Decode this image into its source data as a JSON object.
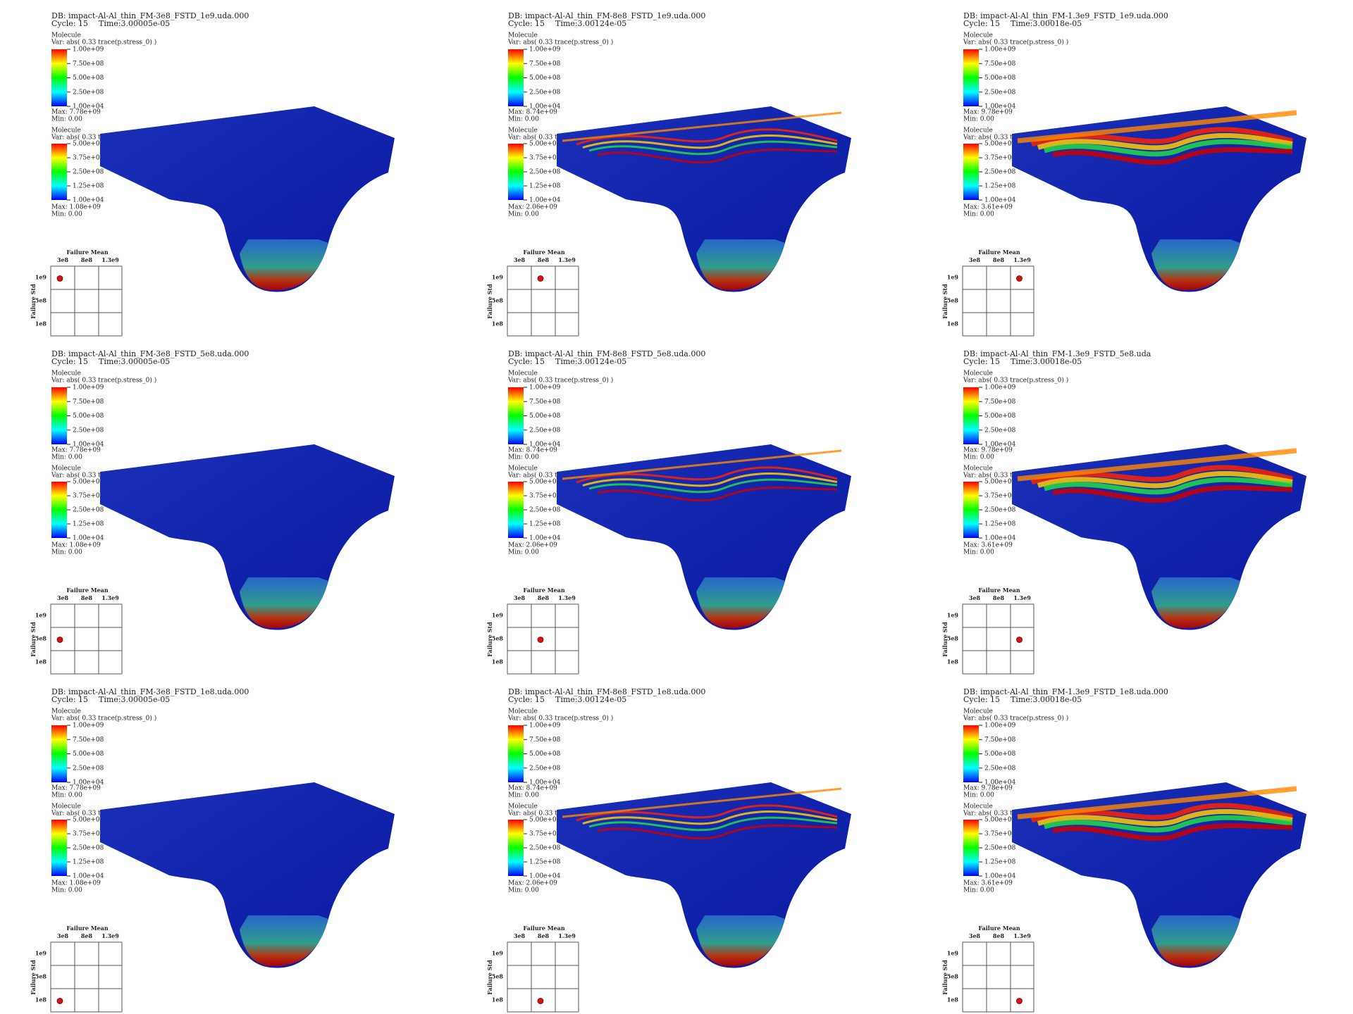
{
  "legend_top": {
    "title": "Molecule",
    "var": "Var: abs( 0.33 trace(p.stress_0) )",
    "ticks": [
      "1.00e+09",
      "7.50e+08",
      "5.00e+08",
      "2.50e+08",
      "1.00e+04"
    ]
  },
  "legend_bottom": {
    "title": "Molecule",
    "var": "Var: abs( 0.33 tra",
    "ticks": [
      "5.00e+08",
      "3.75e+08",
      "2.50e+08",
      "1.25e+08",
      "1.00e+04"
    ]
  },
  "selector": {
    "title": "Failure Mean",
    "x_labels": [
      "3e8",
      "8e8",
      "1.3e9"
    ],
    "y_title": "Failure Std",
    "y_labels": [
      "1e9",
      "5e8",
      "1e8"
    ]
  },
  "panels": [
    {
      "db": "DB: impact-Al-Al_thin_FM-3e8_FSTD_1e9.uda.000",
      "cycle": "Cycle: 15",
      "time": "Time:3.00005e-05",
      "max_top": "Max:  7.78e+09",
      "min_top": "Min:  0.00",
      "max_bottom": "Max:  1.08e+09",
      "min_bottom": "Min:  0.00"
    },
    {
      "db": "DB: impact-Al-Al_thin_FM-8e8_FSTD_1e9.uda.000",
      "cycle": "Cycle: 15",
      "time": "Time:3.00124e-05",
      "max_top": "Max:  8.74e+09",
      "min_top": "Min:  0.00",
      "max_bottom": "Max:  2.06e+09",
      "min_bottom": "Min:  0.00"
    },
    {
      "db": "DB: impact-Al-Al_thin_FM-1.3e9_FSTD_1e9.uda.000",
      "cycle": "Cycle: 15",
      "time": "Time:3.00018e-05",
      "max_top": "Max:  9.78e+09",
      "min_top": "Min:  0.00",
      "max_bottom": "Max:  3.61e+09",
      "min_bottom": "Min:  0.00"
    },
    {
      "db": "DB: impact-Al-Al_thin_FM-3e8_FSTD_5e8.uda.000",
      "cycle": "Cycle: 15",
      "time": "Time:3.00005e-05",
      "max_top": "Max:  7.78e+09",
      "min_top": "Min:  0.00",
      "max_bottom": "Max:  1.08e+09",
      "min_bottom": "Min:  0.00"
    },
    {
      "db": "DB: impact-Al-Al_thin_FM-8e8_FSTD_5e8.uda.000",
      "cycle": "Cycle: 15",
      "time": "Time:3.00124e-05",
      "max_top": "Max:  8.74e+09",
      "min_top": "Min:  0.00",
      "max_bottom": "Max:  2.06e+09",
      "min_bottom": "Min:  0.00"
    },
    {
      "db": "DB: impact-Al-Al_thin_FM-1.3e9_FSTD_5e8.uda",
      "cycle": "Cycle: 15",
      "time": "Time:3.00018e-05",
      "max_top": "Max:  9.78e+09",
      "min_top": "Min:  0.00",
      "max_bottom": "Max:  3.61e+09",
      "min_bottom": "Min:  0.00"
    },
    {
      "db": "DB: impact-Al-Al_thin_FM-3e8_FSTD_1e8.uda.000",
      "cycle": "Cycle: 15",
      "time": "Time:3.00005e-05",
      "max_top": "Max:  7.78e+09",
      "min_top": "Min:  0.00",
      "max_bottom": "Max:  1.08e+09",
      "min_bottom": "Min:  0.00"
    },
    {
      "db": "DB: impact-Al-Al_thin_FM-8e8_FSTD_1e8.uda.000",
      "cycle": "Cycle: 15",
      "time": "Time:3.00124e-05",
      "max_top": "Max:  8.74e+09",
      "min_top": "Min:  0.00",
      "max_bottom": "Max:  2.06e+09",
      "min_bottom": "Min:  0.00"
    },
    {
      "db": "DB: impact-Al-Al_thin_FM-1.3e9_FSTD_1e8.uda.000",
      "cycle": "Cycle: 15",
      "time": "Time:3.00018e-05",
      "max_top": "Max:  9.78e+09",
      "min_top": "Min:  0.00",
      "max_bottom": "Max:  3.61e+09",
      "min_bottom": "Min:  0.00"
    }
  ]
}
